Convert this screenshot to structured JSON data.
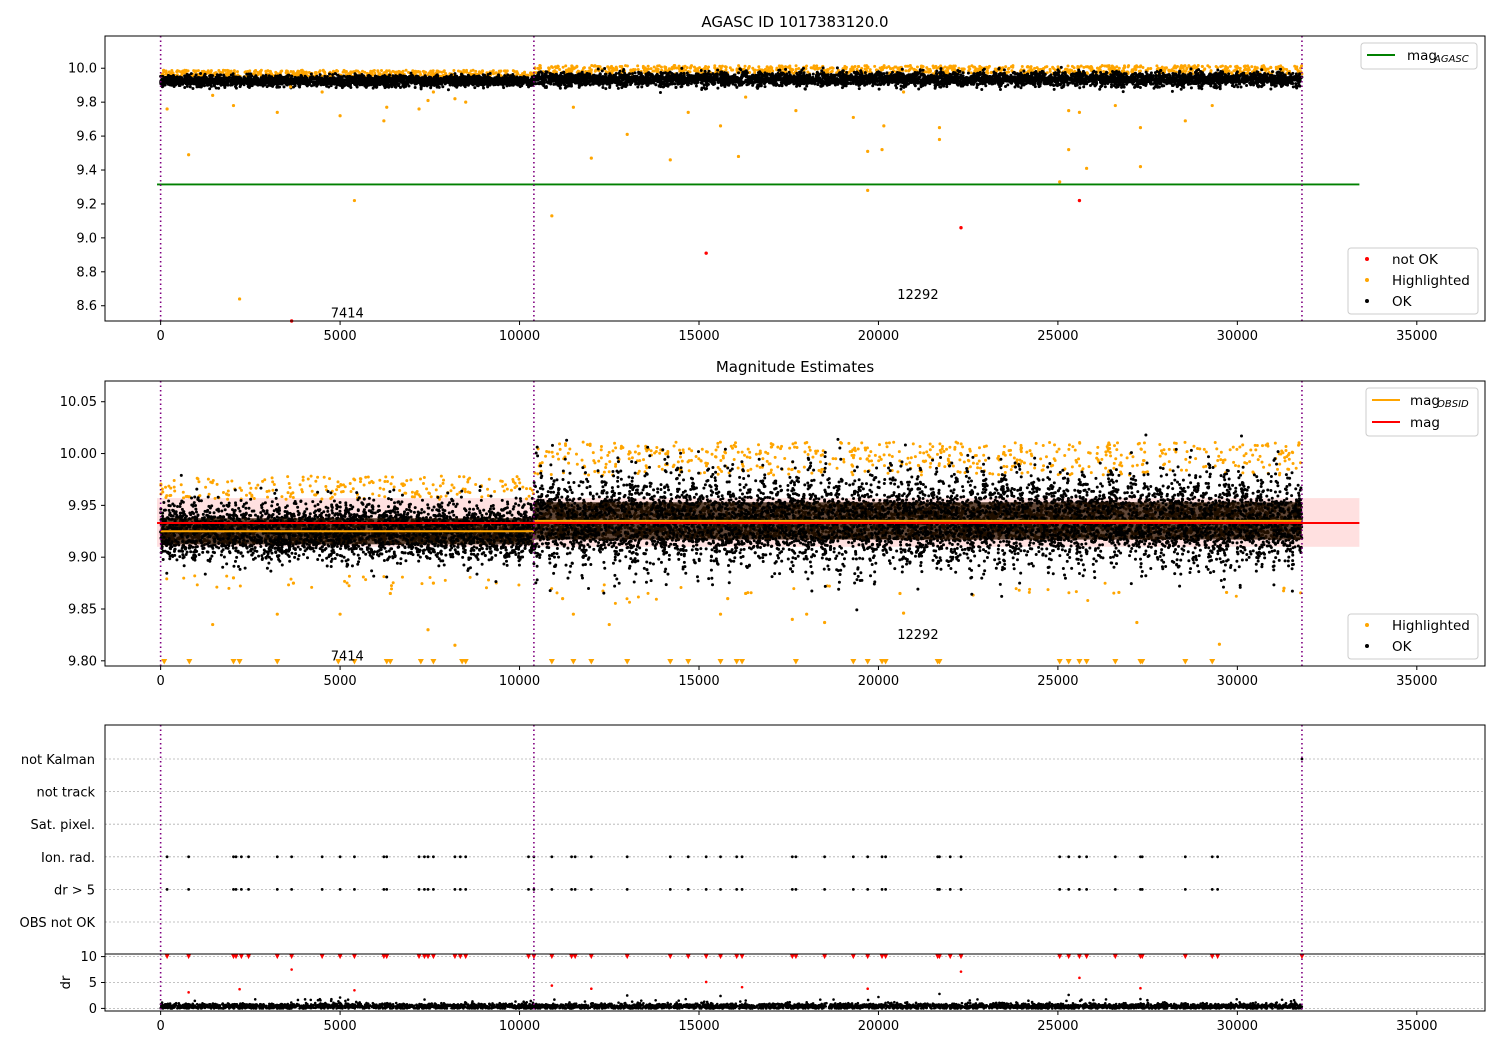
{
  "colors": {
    "ok": "#000000",
    "highlighted": "#ffa500",
    "not_ok": "#ff0000",
    "agasc_line": "#008000",
    "mag_line": "#ff0000",
    "mag_obsid_line": "#ffa500",
    "band": "#ffe0e0",
    "obsid_divider": "#800080",
    "grid": "#b0b0b0"
  },
  "chart_data": [
    {
      "type": "scatter",
      "title": "AGASC ID 1017383120.0",
      "xlim": [
        -1550,
        36900
      ],
      "ylim": [
        8.51,
        10.19
      ],
      "xticks": [
        0,
        5000,
        10000,
        15000,
        20000,
        25000,
        30000,
        35000
      ],
      "yticks": [
        8.6,
        8.8,
        9.0,
        9.2,
        9.4,
        9.6,
        9.8,
        10.0
      ],
      "legend_top": {
        "position": "top-right",
        "entries": [
          {
            "label": "mag",
            "subscript": "AGASC",
            "color": "#008000"
          }
        ]
      },
      "legend_bottom": {
        "position": "bottom-right",
        "entries": [
          {
            "label": "not OK",
            "color": "#ff0000"
          },
          {
            "label": "Highlighted",
            "color": "#ffa500"
          },
          {
            "label": "OK",
            "color": "#000000"
          }
        ]
      },
      "mag_agasc": {
        "value": 9.315,
        "x_range": [
          -100,
          33400
        ]
      },
      "obsid_dividers": [
        0,
        10400,
        31800
      ],
      "obsid_labels": [
        {
          "text": "7414",
          "x": 5200,
          "y": 8.56
        },
        {
          "text": "12292",
          "x": 21100,
          "y": 8.67
        }
      ],
      "ok_band": {
        "segments": [
          {
            "x": [
              0,
              10400
            ],
            "center": 9.925,
            "half_width": 0.035
          },
          {
            "x": [
              10400,
              31800
            ],
            "center": 9.935,
            "half_width": 0.045
          }
        ]
      },
      "highlighted_points": [
        {
          "x": 180,
          "y": 9.76
        },
        {
          "x": 780,
          "y": 9.49
        },
        {
          "x": 1450,
          "y": 9.84
        },
        {
          "x": 2030,
          "y": 9.78
        },
        {
          "x": 2200,
          "y": 8.64
        },
        {
          "x": 3250,
          "y": 9.74
        },
        {
          "x": 3620,
          "y": 9.89
        },
        {
          "x": 4500,
          "y": 9.86
        },
        {
          "x": 5000,
          "y": 9.72
        },
        {
          "x": 5400,
          "y": 9.22
        },
        {
          "x": 6220,
          "y": 9.69
        },
        {
          "x": 6300,
          "y": 9.77
        },
        {
          "x": 7200,
          "y": 9.76
        },
        {
          "x": 7450,
          "y": 9.81
        },
        {
          "x": 7600,
          "y": 9.86
        },
        {
          "x": 8200,
          "y": 9.82
        },
        {
          "x": 8500,
          "y": 9.8
        },
        {
          "x": 10900,
          "y": 9.13
        },
        {
          "x": 11500,
          "y": 9.77
        },
        {
          "x": 12000,
          "y": 9.47
        },
        {
          "x": 13000,
          "y": 9.61
        },
        {
          "x": 14200,
          "y": 9.46
        },
        {
          "x": 14700,
          "y": 9.74
        },
        {
          "x": 15600,
          "y": 9.66
        },
        {
          "x": 16100,
          "y": 9.48
        },
        {
          "x": 16300,
          "y": 9.83
        },
        {
          "x": 17700,
          "y": 9.75
        },
        {
          "x": 19300,
          "y": 9.71
        },
        {
          "x": 19700,
          "y": 9.51
        },
        {
          "x": 19700,
          "y": 9.28
        },
        {
          "x": 20100,
          "y": 9.52
        },
        {
          "x": 20150,
          "y": 9.66
        },
        {
          "x": 20700,
          "y": 9.86
        },
        {
          "x": 21700,
          "y": 9.65
        },
        {
          "x": 21700,
          "y": 9.58
        },
        {
          "x": 25050,
          "y": 9.33
        },
        {
          "x": 25300,
          "y": 9.52
        },
        {
          "x": 25300,
          "y": 9.75
        },
        {
          "x": 25600,
          "y": 9.74
        },
        {
          "x": 25800,
          "y": 9.41
        },
        {
          "x": 26600,
          "y": 9.78
        },
        {
          "x": 27300,
          "y": 9.65
        },
        {
          "x": 27300,
          "y": 9.42
        },
        {
          "x": 28550,
          "y": 9.69
        },
        {
          "x": 29300,
          "y": 9.78
        }
      ],
      "not_ok_points": [
        {
          "x": 3650,
          "y": 8.51
        },
        {
          "x": 15200,
          "y": 8.91
        },
        {
          "x": 22300,
          "y": 9.06
        },
        {
          "x": 25600,
          "y": 9.22
        }
      ]
    },
    {
      "type": "scatter",
      "title": "Magnitude Estimates",
      "xlim": [
        -1550,
        36900
      ],
      "ylim": [
        9.795,
        10.07
      ],
      "xticks": [
        0,
        5000,
        10000,
        15000,
        20000,
        25000,
        30000,
        35000
      ],
      "yticks": [
        9.8,
        9.85,
        9.9,
        9.95,
        10.0,
        10.05
      ],
      "legend_top": {
        "position": "top-right",
        "entries": [
          {
            "label": "mag",
            "subscript": "OBSID",
            "color": "#ffa500"
          },
          {
            "label": "mag",
            "color": "#ff0000"
          }
        ]
      },
      "legend_bottom": {
        "position": "bottom-right",
        "entries": [
          {
            "label": "Highlighted",
            "color": "#ffa500"
          },
          {
            "label": "OK",
            "color": "#000000"
          }
        ]
      },
      "mag": {
        "value": 9.933,
        "band": [
          9.91,
          9.957
        ],
        "x_range": [
          -100,
          33400
        ]
      },
      "mag_obsid": [
        {
          "x": [
            0,
            10400
          ],
          "value": 9.925
        },
        {
          "x": [
            10400,
            31800
          ],
          "value": 9.935
        }
      ],
      "obsid_dividers": [
        0,
        10400,
        31800
      ],
      "obsid_labels": [
        {
          "text": "7414",
          "x": 5200,
          "y": 9.805
        },
        {
          "text": "12292",
          "x": 21100,
          "y": 9.826
        }
      ],
      "ok_band": {
        "segments": [
          {
            "x": [
              0,
              10400
            ],
            "center": 9.925,
            "half_width": 0.028
          },
          {
            "x": [
              10400,
              31800
            ],
            "center": 9.935,
            "half_width": 0.04
          }
        ]
      },
      "highlighted_points": [
        {
          "x": 1450,
          "y": 9.835
        },
        {
          "x": 2030,
          "y": 9.88
        },
        {
          "x": 3250,
          "y": 9.845
        },
        {
          "x": 3700,
          "y": 9.875
        },
        {
          "x": 5000,
          "y": 9.845
        },
        {
          "x": 6400,
          "y": 9.865
        },
        {
          "x": 7450,
          "y": 9.83
        },
        {
          "x": 7600,
          "y": 9.875
        },
        {
          "x": 8200,
          "y": 9.815
        },
        {
          "x": 11200,
          "y": 9.86
        },
        {
          "x": 11500,
          "y": 9.845
        },
        {
          "x": 12500,
          "y": 9.835
        },
        {
          "x": 15600,
          "y": 9.845
        },
        {
          "x": 15800,
          "y": 9.86
        },
        {
          "x": 16300,
          "y": 9.865
        },
        {
          "x": 17600,
          "y": 9.84
        },
        {
          "x": 18000,
          "y": 9.845
        },
        {
          "x": 18500,
          "y": 9.837
        },
        {
          "x": 20600,
          "y": 9.865
        },
        {
          "x": 20700,
          "y": 9.846
        },
        {
          "x": 26700,
          "y": 9.866
        },
        {
          "x": 27200,
          "y": 9.837
        },
        {
          "x": 29500,
          "y": 9.816
        },
        {
          "x": 29700,
          "y": 9.866
        },
        {
          "x": 31300,
          "y": 9.87
        }
      ],
      "highlighted_clipped_x": [
        100,
        800,
        2030,
        2200,
        3250,
        4950,
        5400,
        6300,
        6400,
        7250,
        7600,
        8400,
        8500,
        10900,
        11500,
        12000,
        13000,
        14200,
        14700,
        15600,
        16050,
        16200,
        17700,
        19300,
        19700,
        20100,
        20200,
        21650,
        21700,
        25050,
        25300,
        25600,
        25800,
        26600,
        27300,
        27350,
        28550,
        29300
      ]
    },
    {
      "type": "scatter",
      "title": "",
      "xlim": [
        -1550,
        36900
      ],
      "xticks": [
        0,
        5000,
        10000,
        15000,
        20000,
        25000,
        30000,
        35000
      ],
      "flag_labels": [
        "not Kalman",
        "not track",
        "Sat. pixel.",
        "Ion. rad.",
        "dr > 5",
        "OBS not OK"
      ],
      "flag_rows": [
        {
          "label": "not Kalman",
          "x": [
            31800
          ]
        },
        {
          "label": "not track",
          "x": []
        },
        {
          "label": "Sat. pixel.",
          "x": []
        },
        {
          "label": "Ion. rad.",
          "x": [
            180,
            780,
            2030,
            2100,
            2250,
            2450,
            3250,
            3650,
            4500,
            5000,
            5400,
            6220,
            6300,
            7200,
            7350,
            7450,
            7600,
            8200,
            8350,
            8500,
            10250,
            10400,
            10900,
            11450,
            11550,
            12000,
            13000,
            14200,
            14700,
            15200,
            15600,
            16050,
            16200,
            17600,
            17700,
            18500,
            19300,
            19700,
            20100,
            20200,
            21650,
            21700,
            22000,
            22300,
            25050,
            25300,
            25600,
            25800,
            26600,
            27300,
            27350,
            28550,
            29300,
            29450
          ]
        },
        {
          "label": "dr > 5",
          "x": [
            180,
            780,
            2030,
            2100,
            2250,
            2450,
            3250,
            3650,
            4500,
            5000,
            5400,
            6220,
            6300,
            7200,
            7350,
            7450,
            7600,
            8200,
            8350,
            8500,
            10250,
            10400,
            10900,
            11450,
            11550,
            12000,
            13000,
            14200,
            14700,
            15200,
            15600,
            16050,
            16200,
            17600,
            17700,
            18500,
            19300,
            19700,
            20100,
            20200,
            21650,
            21700,
            22000,
            22300,
            25050,
            25300,
            25600,
            25800,
            26600,
            27300,
            27350,
            28550,
            29300,
            29450
          ]
        },
        {
          "label": "OBS not OK",
          "x": []
        }
      ],
      "dr": {
        "ylabel": "dr",
        "ylim": [
          -0.5,
          10.5
        ],
        "yticks": [
          0,
          5,
          10
        ],
        "clip_value": 10,
        "red_clipped_x": [
          180,
          780,
          2030,
          2100,
          2250,
          2450,
          3250,
          3650,
          4500,
          5000,
          5400,
          6220,
          6300,
          7200,
          7350,
          7450,
          7600,
          8200,
          8350,
          8500,
          10250,
          10400,
          10900,
          11450,
          11550,
          12000,
          13000,
          14200,
          14700,
          15200,
          15600,
          16050,
          16200,
          17600,
          17700,
          18500,
          19300,
          19700,
          20100,
          20200,
          21650,
          21700,
          22000,
          22300,
          25050,
          25300,
          25600,
          25800,
          26600,
          27300,
          27350,
          28550,
          29300,
          29450,
          31800
        ],
        "red_points": [
          {
            "x": 780,
            "y": 3.1
          },
          {
            "x": 2200,
            "y": 3.7
          },
          {
            "x": 3650,
            "y": 7.5
          },
          {
            "x": 5400,
            "y": 3.5
          },
          {
            "x": 10900,
            "y": 4.4
          },
          {
            "x": 12000,
            "y": 3.8
          },
          {
            "x": 15200,
            "y": 5.1
          },
          {
            "x": 16200,
            "y": 4.1
          },
          {
            "x": 19700,
            "y": 3.8
          },
          {
            "x": 22300,
            "y": 7.1
          },
          {
            "x": 25600,
            "y": 5.9
          },
          {
            "x": 27300,
            "y": 3.9
          }
        ],
        "black_outliers": [
          {
            "x": 5000,
            "y": 2.1
          },
          {
            "x": 13000,
            "y": 2.5
          },
          {
            "x": 15600,
            "y": 2.4
          },
          {
            "x": 20000,
            "y": 2.2
          },
          {
            "x": 21700,
            "y": 2.8
          },
          {
            "x": 25300,
            "y": 2.6
          },
          {
            "x": 27300,
            "y": 1.8
          }
        ],
        "baseline": {
          "center": 0.4,
          "half_width": 0.6
        }
      }
    }
  ]
}
